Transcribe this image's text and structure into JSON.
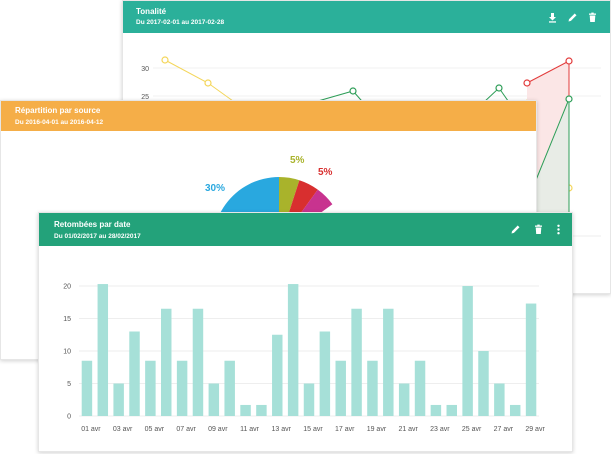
{
  "tonalite": {
    "title": "Tonalité",
    "subtitle": "Du 2017-02-01 au 2017-02-28",
    "header_color": "#2bb09a",
    "y_ticks": [
      "30",
      "25"
    ],
    "series_colors": {
      "yellow": "#f4d65a",
      "green": "#2e9e58",
      "red": "#e23b3b"
    }
  },
  "repartition": {
    "title": "Répartition par source",
    "subtitle": "Du 2016-04-01 au 2016-04-12",
    "header_color": "#f5ae48",
    "chart_data": {
      "type": "pie",
      "slices": [
        {
          "label": "30%",
          "value": 30,
          "color": "#29a8df"
        },
        {
          "label": "5%",
          "value": 5,
          "color": "#a9b32b"
        },
        {
          "label": "5%",
          "value": 5,
          "color": "#d82f2f"
        },
        {
          "label": "",
          "value": 5,
          "color": "#c8338f"
        }
      ]
    }
  },
  "retombees": {
    "title": "Retombées par date",
    "subtitle": "Du 01/02/2017 au 28/02/2017",
    "header_color": "#23a27a",
    "bar_color": "#a6e0d8",
    "chart_data": {
      "type": "bar",
      "ylim": [
        0,
        20
      ],
      "y_ticks": [
        0,
        5,
        10,
        15,
        20
      ],
      "x_tick_labels": [
        "01 avr",
        "03 avr",
        "05 avr",
        "07 avr",
        "09 avr",
        "11 avr",
        "13 avr",
        "15 avr",
        "17 avr",
        "19 avr",
        "21 avr",
        "23 avr",
        "25 avr",
        "27 avr",
        "29 avr"
      ],
      "values": [
        8.5,
        20.3,
        5,
        13,
        8.5,
        16.5,
        8.5,
        16.5,
        5,
        8.5,
        1.7,
        1.7,
        12.5,
        20.3,
        5,
        13,
        8.5,
        16.5,
        8.5,
        16.5,
        5,
        8.5,
        1.7,
        1.7,
        20,
        10,
        5,
        1.7,
        17.3
      ]
    }
  }
}
